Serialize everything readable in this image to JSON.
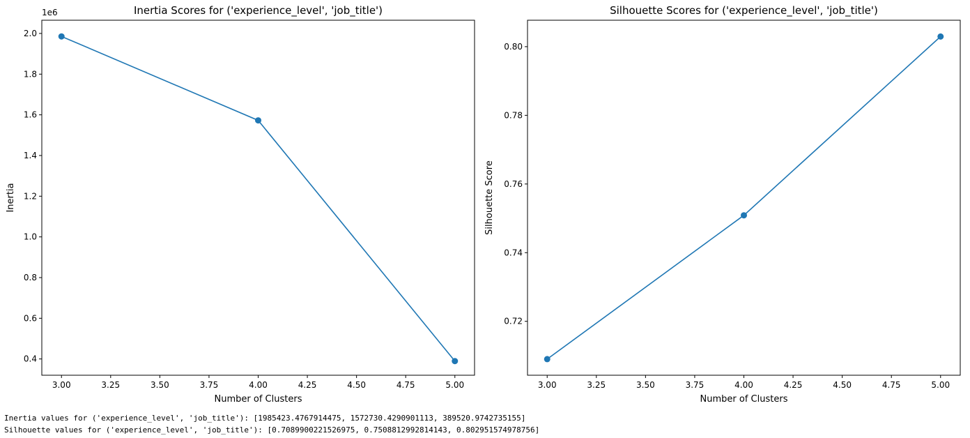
{
  "chart_data": [
    {
      "type": "line",
      "title": "Inertia Scores for ('experience_level', 'job_title')",
      "xlabel": "Number of Clusters",
      "ylabel": "Inertia",
      "offset_label": "1e6",
      "x": [
        3,
        4,
        5
      ],
      "series": [
        {
          "values": [
            1985423.4767914475,
            1572730.4290901113,
            389520.9742735155
          ]
        }
      ],
      "xlim": [
        2.9,
        5.1
      ],
      "ylim": [
        320000,
        2065000
      ],
      "xticks": [
        3.0,
        3.25,
        3.5,
        3.75,
        4.0,
        4.25,
        4.5,
        4.75,
        5.0
      ],
      "xtick_labels": [
        "3.00",
        "3.25",
        "3.50",
        "3.75",
        "4.00",
        "4.25",
        "4.50",
        "4.75",
        "5.00"
      ],
      "yticks": [
        400000,
        600000,
        800000,
        1000000,
        1200000,
        1400000,
        1600000,
        1800000,
        2000000
      ],
      "ytick_labels": [
        "0.4",
        "0.6",
        "0.8",
        "1.0",
        "1.2",
        "1.4",
        "1.6",
        "1.8",
        "2.0"
      ],
      "color": "#1f77b4",
      "marker": "circle",
      "grid": false
    },
    {
      "type": "line",
      "title": "Silhouette Scores for ('experience_level', 'job_title')",
      "xlabel": "Number of Clusters",
      "ylabel": "Silhouette Score",
      "offset_label": "",
      "x": [
        3,
        4,
        5
      ],
      "series": [
        {
          "values": [
            0.7089900221526975,
            0.7508812992814143,
            0.802951574978756
          ]
        }
      ],
      "xlim": [
        2.9,
        5.1
      ],
      "ylim": [
        0.7043,
        0.8077
      ],
      "xticks": [
        3.0,
        3.25,
        3.5,
        3.75,
        4.0,
        4.25,
        4.5,
        4.75,
        5.0
      ],
      "xtick_labels": [
        "3.00",
        "3.25",
        "3.50",
        "3.75",
        "4.00",
        "4.25",
        "4.50",
        "4.75",
        "5.00"
      ],
      "yticks": [
        0.72,
        0.74,
        0.76,
        0.78,
        0.8
      ],
      "ytick_labels": [
        "0.72",
        "0.74",
        "0.76",
        "0.78",
        "0.80"
      ],
      "color": "#1f77b4",
      "marker": "circle",
      "grid": false
    }
  ],
  "output": {
    "inertia_line": "Inertia values for ('experience_level', 'job_title'): [1985423.4767914475, 1572730.4290901113, 389520.9742735155]",
    "silhouette_line": "Silhouette values for ('experience_level', 'job_title'): [0.7089900221526975, 0.7508812992814143, 0.802951574978756]"
  }
}
